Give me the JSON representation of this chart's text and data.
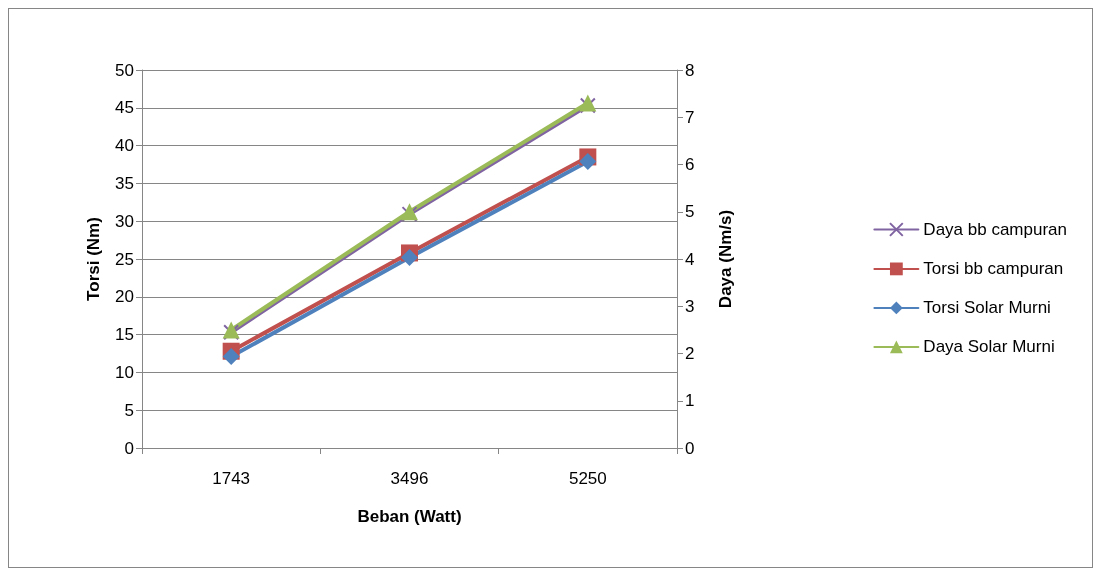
{
  "chart_data": {
    "type": "line",
    "xlabel": "Beban (Watt)",
    "ylabel": "Torsi (Nm)",
    "y2label": "Daya (Nm/s)",
    "categories": [
      "1743",
      "3496",
      "5250"
    ],
    "series": [
      {
        "name": "Daya bb campuran",
        "color": "#8064a2",
        "values": [
          2.45,
          4.95,
          7.25
        ],
        "axis": "y2",
        "marker": "cross"
      },
      {
        "name": "Torsi bb campuran",
        "color": "#c0504d",
        "values": [
          12.8,
          25.8,
          38.5
        ],
        "marker": "square"
      },
      {
        "name": "Torsi Solar Murni",
        "color": "#4f81bd",
        "values": [
          12.1,
          25.2,
          37.9
        ],
        "marker": "diamond"
      },
      {
        "name": "Daya Solar Murni",
        "color": "#9bbb59",
        "values": [
          2.5,
          5.0,
          7.3
        ],
        "axis": "y2",
        "marker": "triangle"
      }
    ],
    "ylim": [
      0,
      50
    ],
    "yticks": [
      0,
      5,
      10,
      15,
      20,
      25,
      30,
      35,
      40,
      45,
      50
    ],
    "y2lim": [
      0,
      8
    ],
    "y2ticks": [
      0,
      1,
      2,
      3,
      4,
      5,
      6,
      7,
      8
    ],
    "grid": "y",
    "legend": "right",
    "line_style": "solid"
  }
}
